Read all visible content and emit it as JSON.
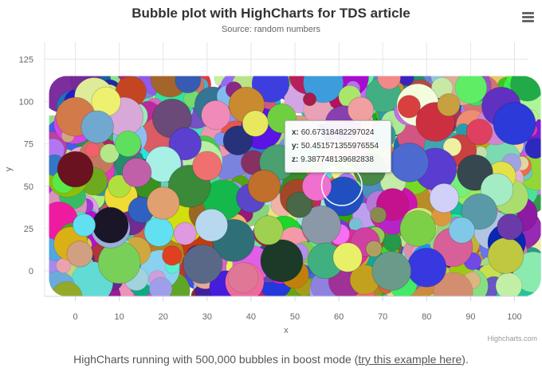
{
  "chart_data": {
    "type": "bubble",
    "title": "Bubble plot with HighCharts for TDS article",
    "subtitle": "Source: random numbers",
    "xlabel": "x",
    "ylabel": "y",
    "xlim": [
      -7,
      103
    ],
    "ylim": [
      -15,
      135
    ],
    "xticks": [
      0,
      10,
      20,
      30,
      40,
      50,
      60,
      70,
      80,
      90,
      100
    ],
    "yticks": [
      0,
      25,
      50,
      75,
      100,
      125
    ],
    "series_count": 500000,
    "points": [
      {
        "x": 0,
        "y": 91,
        "z": 9,
        "color": "#d27a4a"
      },
      {
        "x": 0,
        "y": 60,
        "z": 8,
        "color": "#6b1220"
      },
      {
        "x": 11,
        "y": 91,
        "z": 9,
        "color": "#d8a8d8"
      },
      {
        "x": 12,
        "y": 75,
        "z": 5,
        "color": "#5ee05e"
      },
      {
        "x": 7,
        "y": 100,
        "z": 6,
        "color": "#eef070"
      },
      {
        "x": 22,
        "y": 90,
        "z": 9,
        "color": "#6a4a78"
      },
      {
        "x": 25,
        "y": 75,
        "z": 7,
        "color": "#5b3fcf"
      },
      {
        "x": 20,
        "y": 63,
        "z": 8,
        "color": "#a6f0e6"
      },
      {
        "x": 26,
        "y": 50,
        "z": 10,
        "color": "#3a8a3a"
      },
      {
        "x": 39,
        "y": 98,
        "z": 8,
        "color": "#c98a30"
      },
      {
        "x": 37,
        "y": 77,
        "z": 6,
        "color": "#26327a"
      },
      {
        "x": 47,
        "y": 90,
        "z": 6,
        "color": "#70cf40"
      },
      {
        "x": 46,
        "y": 64,
        "z": 8,
        "color": "#4aa070"
      },
      {
        "x": 61,
        "y": 87,
        "z": 8,
        "color": "#8a3fb0"
      },
      {
        "x": 78,
        "y": 98,
        "z": 10,
        "color": "#f3fcdc"
      },
      {
        "x": 76,
        "y": 97,
        "z": 4,
        "color": "#d84040"
      },
      {
        "x": 82,
        "y": 88,
        "z": 9,
        "color": "#cc3040"
      },
      {
        "x": 97,
        "y": 97,
        "z": 9,
        "color": "#6030c0"
      },
      {
        "x": 100,
        "y": 87,
        "z": 10,
        "color": "#2b3ad8"
      },
      {
        "x": 92,
        "y": 82,
        "z": 5,
        "color": "#e04060"
      },
      {
        "x": 97,
        "y": 56,
        "z": 6,
        "color": "#e4e24a"
      },
      {
        "x": 82,
        "y": 60,
        "z": 10,
        "color": "#5a3cd0"
      },
      {
        "x": 76,
        "y": 64,
        "z": 9,
        "color": "#4c6ad0"
      },
      {
        "x": 91,
        "y": 58,
        "z": 8,
        "color": "#36474f"
      },
      {
        "x": 96,
        "y": 48,
        "z": 7,
        "color": "#a4ecc4"
      },
      {
        "x": 92,
        "y": 35,
        "z": 8,
        "color": "#5a9aa8"
      },
      {
        "x": 61,
        "y": 44,
        "z": 9,
        "color": "#2050c0"
      },
      {
        "x": 67,
        "y": 60,
        "z": 7,
        "color": "#4a8a48"
      },
      {
        "x": 56,
        "y": 27,
        "z": 9,
        "color": "#8a98a8"
      },
      {
        "x": 66,
        "y": 17,
        "z": 6,
        "color": "#d040a0"
      },
      {
        "x": 78,
        "y": 25,
        "z": 8,
        "color": "#7cd048"
      },
      {
        "x": 86,
        "y": 14,
        "z": 9,
        "color": "#d86098"
      },
      {
        "x": 98,
        "y": 9,
        "z": 8,
        "color": "#c0c840"
      },
      {
        "x": 80,
        "y": 2,
        "z": 9,
        "color": "#3838e0"
      },
      {
        "x": 72,
        "y": 0,
        "z": 9,
        "color": "#6a9a8a"
      },
      {
        "x": 57,
        "y": 6,
        "z": 8,
        "color": "#40b080"
      },
      {
        "x": 47,
        "y": 6,
        "z": 10,
        "color": "#1b3b28"
      },
      {
        "x": 36,
        "y": 18,
        "z": 10,
        "color": "#2f6f78"
      },
      {
        "x": 29,
        "y": 4,
        "z": 9,
        "color": "#5a6888"
      },
      {
        "x": 19,
        "y": 23,
        "z": 6,
        "color": "#60e0f0"
      },
      {
        "x": 10,
        "y": 5,
        "z": 10,
        "color": "#78d058"
      },
      {
        "x": 8,
        "y": 25,
        "z": 9,
        "color": "#9ab0d8"
      },
      {
        "x": 8,
        "y": 27,
        "z": 8,
        "color": "#1a1628"
      },
      {
        "x": 2,
        "y": 27,
        "z": 4,
        "color": "#60e0f0"
      },
      {
        "x": 1,
        "y": 10,
        "z": 5,
        "color": "#d0a080"
      },
      {
        "x": 22,
        "y": 9,
        "z": 3,
        "color": "#e04020"
      },
      {
        "x": 25,
        "y": 22,
        "z": 4,
        "color": "#e098e0"
      },
      {
        "x": 40,
        "y": 43,
        "z": 6,
        "color": "#5a46c8"
      },
      {
        "x": 43,
        "y": 50,
        "z": 7,
        "color": "#c0702a"
      },
      {
        "x": 51,
        "y": 39,
        "z": 5,
        "color": "#486848"
      },
      {
        "x": 10,
        "y": 50,
        "z": 4,
        "color": "#b0e040"
      },
      {
        "x": 32,
        "y": 92,
        "z": 6,
        "color": "#f08ab8"
      },
      {
        "x": 41,
        "y": 87,
        "z": 5,
        "color": "#e8e860"
      },
      {
        "x": 85,
        "y": 98,
        "z": 4,
        "color": "#c8a040"
      },
      {
        "x": 68,
        "y": 13,
        "z": 2,
        "color": "#b0a060"
      },
      {
        "x": 69,
        "y": 33,
        "z": 2,
        "color": "#8a8a50"
      },
      {
        "x": 55,
        "y": 50,
        "z": 6,
        "color": "#f070d0"
      },
      {
        "x": 14,
        "y": 58,
        "z": 6,
        "color": "#c060a8"
      },
      {
        "x": 31,
        "y": 27,
        "z": 7,
        "color": "#b8d8f0"
      },
      {
        "x": 5,
        "y": 85,
        "z": 7,
        "color": "#70a8d0"
      },
      {
        "x": 62,
        "y": 8,
        "z": 6,
        "color": "#e8f068"
      },
      {
        "x": 88,
        "y": 24,
        "z": 5,
        "color": "#80c8e8"
      },
      {
        "x": 99,
        "y": 26,
        "z": 5,
        "color": "#6a3aa8"
      },
      {
        "x": 30,
        "y": 62,
        "z": 6,
        "color": "#f07070"
      },
      {
        "x": 53,
        "y": 80,
        "z": 6,
        "color": "#b0b0c8"
      },
      {
        "x": 70,
        "y": 80,
        "z": 5,
        "color": "#40a0a0"
      },
      {
        "x": 15,
        "y": 36,
        "z": 5,
        "color": "#3060c0"
      },
      {
        "x": 44,
        "y": 24,
        "z": 6,
        "color": "#a0d050"
      },
      {
        "x": 20,
        "y": 40,
        "z": 7,
        "color": "#e0a070"
      },
      {
        "x": 84,
        "y": 43,
        "z": 6,
        "color": "#d0d0f8"
      },
      {
        "x": 65,
        "y": 95,
        "z": 5,
        "color": "#f0a0a0"
      }
    ],
    "tooltip": {
      "x_label": "x:",
      "x_value": "60.67318482297024",
      "y_label": "y:",
      "y_value": "50.451571355976554",
      "z_label": "z:",
      "z_value": "9.387748139682838"
    }
  },
  "credits": "Highcharts.com",
  "caption": {
    "before": "HighCharts running with 500,000 bubbles in boost mode (",
    "link": "try this example here",
    "after": ")."
  }
}
